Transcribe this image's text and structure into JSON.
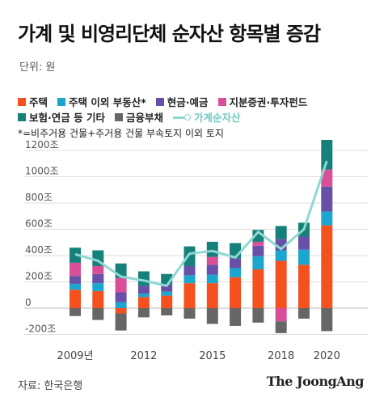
{
  "header": {
    "title": "가계 및 비영리단체 순자산 항목별 증감",
    "unit": "단위: 원",
    "note": "*=비주거용 건물+주거용 건물 부속토지 이외 토지"
  },
  "legend": {
    "rows": [
      [
        {
          "label": "주택",
          "color": "#f4511e"
        },
        {
          "label": "주택 이외 부동산*",
          "color": "#1aa6cf"
        },
        {
          "label": "현금·예금",
          "color": "#6650a8"
        },
        {
          "label": "지분증권·투자펀드",
          "color": "#d94f97"
        }
      ],
      [
        {
          "label": "보험·연금 등 기타",
          "color": "#16807a"
        },
        {
          "label": "금융부채",
          "color": "#666666"
        }
      ]
    ],
    "line": {
      "label": "가계순자산",
      "color": "#8fd8d2"
    }
  },
  "chart_data": {
    "type": "bar",
    "stacked": true,
    "x": [
      2009,
      2010,
      2011,
      2012,
      2013,
      2014,
      2015,
      2016,
      2017,
      2018,
      2019,
      2020
    ],
    "x_tick_labels": [
      {
        "x": 2009,
        "label": "2009년"
      },
      {
        "x": 2012,
        "label": "2012"
      },
      {
        "x": 2015,
        "label": "2015"
      },
      {
        "x": 2018,
        "label": "2018"
      },
      {
        "x": 2020,
        "label": "2020"
      }
    ],
    "y_ticks": [
      {
        "value": 1200,
        "label": "1200조"
      },
      {
        "value": 1000,
        "label": "1000조"
      },
      {
        "value": 800,
        "label": "800조"
      },
      {
        "value": 600,
        "label": "600조"
      },
      {
        "value": 400,
        "label": "400조"
      },
      {
        "value": 200,
        "label": "200조"
      },
      {
        "value": 0,
        "label": "0"
      },
      {
        "value": -200,
        "label": "-200조"
      }
    ],
    "ylim": [
      -230,
      1300
    ],
    "grid": true,
    "series": [
      {
        "name": "주택",
        "color": "#f4511e",
        "values": [
          140,
          130,
          -40,
          85,
          95,
          190,
          190,
          235,
          295,
          360,
          330,
          630
        ]
      },
      {
        "name": "주택 이외 부동산*",
        "color": "#1aa6cf",
        "values": [
          45,
          60,
          45,
          25,
          30,
          60,
          65,
          70,
          100,
          80,
          115,
          105
        ]
      },
      {
        "name": "현금·예금",
        "color": "#6650a8",
        "values": [
          60,
          70,
          75,
          60,
          55,
          70,
          75,
          75,
          80,
          85,
          100,
          190
        ]
      },
      {
        "name": "지분증권·투자펀드",
        "color": "#d94f97",
        "values": [
          100,
          60,
          110,
          0,
          0,
          0,
          60,
          0,
          30,
          -100,
          0,
          130
        ]
      },
      {
        "name": "보험·연금 등 기타",
        "color": "#16807a",
        "values": [
          115,
          120,
          110,
          110,
          80,
          150,
          115,
          115,
          90,
          100,
          105,
          225
        ]
      },
      {
        "name": "금융부채",
        "color": "#666666",
        "values": [
          -60,
          -90,
          -130,
          -70,
          -55,
          -80,
          -120,
          -135,
          -110,
          -90,
          -80,
          -175
        ]
      }
    ],
    "line_series": {
      "name": "가계순자산",
      "color": "#8fd8d2",
      "values": [
        410,
        360,
        240,
        210,
        170,
        415,
        435,
        385,
        580,
        450,
        600,
        1120
      ]
    }
  },
  "footer": {
    "source": "자료: 한국은행",
    "brand": "The JoongAng"
  }
}
